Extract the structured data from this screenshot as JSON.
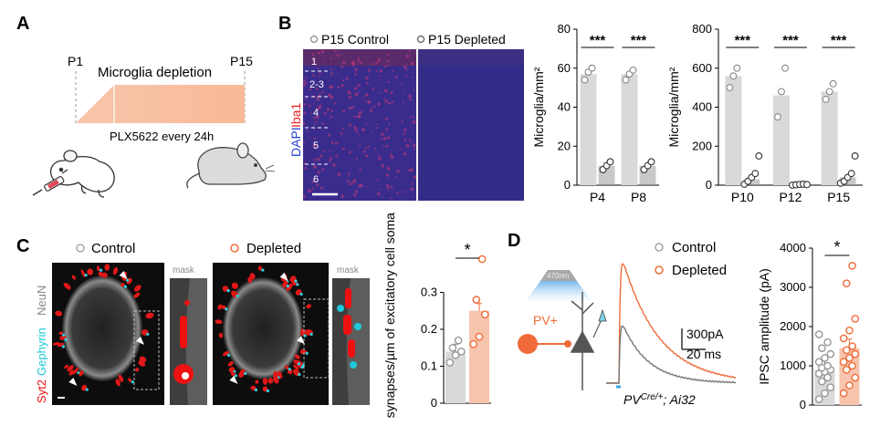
{
  "panels": {
    "a": "A",
    "b": "B",
    "c": "C",
    "d": "D"
  },
  "panel_a": {
    "p1": "P1",
    "p15": "P15",
    "title": "Microglia depletion",
    "drug": "PLX5622 every 24h"
  },
  "panel_b": {
    "legend_control": "P15 Control",
    "legend_depleted": "P15 Depleted",
    "stain_dapi": "DAPI",
    "stain_iba1": "Iba1",
    "layers": [
      "1",
      "2-3",
      "4",
      "5",
      "6"
    ]
  },
  "panel_c": {
    "legend_control": "Control",
    "legend_depleted": "Depleted",
    "mask": "mask",
    "stain_syt2": "Syt2",
    "stain_gephyrin": "Gephyrin",
    "stain_neun": "NeuN"
  },
  "panel_d": {
    "light": "470nm",
    "pv": "PV+",
    "scale_amp": "300pA",
    "scale_time": "20 ms",
    "genotype": "PV",
    "genotype_sup": "Cre/+",
    "genotype_rest": "; Ai32",
    "legend_control": "Control",
    "legend_depleted": "Depleted"
  },
  "colors": {
    "control": "#999999",
    "depleted": "#ef6c3a",
    "bar_control": "#d9d9d9",
    "bar_depleted": "#f7c4ad"
  },
  "chart_data": [
    {
      "id": "b1",
      "type": "bar",
      "ylabel": "Microglia/mm²",
      "categories": [
        "P4",
        "P8"
      ],
      "ylim": [
        0,
        80
      ],
      "yticks": [
        0,
        20,
        40,
        60,
        80
      ],
      "series": [
        {
          "name": "Control",
          "values": [
            57,
            57
          ]
        },
        {
          "name": "Depleted",
          "values": [
            10,
            10
          ]
        }
      ],
      "points": [
        [
          [
            54,
            58,
            60
          ],
          [
            54,
            57,
            59
          ]
        ],
        [
          [
            8,
            10,
            12
          ],
          [
            8,
            10,
            12
          ]
        ]
      ],
      "sig": [
        "***",
        "***"
      ]
    },
    {
      "id": "b2",
      "type": "bar",
      "ylabel": "Microglia/mm²",
      "categories": [
        "P10",
        "P12",
        "P15"
      ],
      "ylim": [
        0,
        800
      ],
      "yticks": [
        0,
        200,
        400,
        600,
        800
      ],
      "series": [
        {
          "name": "Control",
          "values": [
            560,
            460,
            480
          ]
        },
        {
          "name": "Depleted",
          "values": [
            30,
            2,
            40
          ]
        }
      ],
      "points": [
        [
          [
            500,
            560,
            600
          ],
          [
            350,
            480,
            600
          ],
          [
            440,
            480,
            520
          ]
        ],
        [
          [
            5,
            20,
            40,
            60,
            150
          ],
          [
            0,
            2,
            4,
            5,
            3
          ],
          [
            10,
            20,
            40,
            60,
            150
          ]
        ]
      ],
      "sig": [
        "***",
        "***",
        "***"
      ]
    },
    {
      "id": "c",
      "type": "bar",
      "ylabel": "PV+ synapses/µm of excitatory cell soma",
      "categories": [
        "Control",
        "Depleted"
      ],
      "ylim": [
        0,
        0.4
      ],
      "yticks": [
        0,
        0.1,
        0.2,
        0.3
      ],
      "values": [
        0.14,
        0.25
      ],
      "points": [
        [
          0.11,
          0.13,
          0.14,
          0.15,
          0.17
        ],
        [
          0.16,
          0.18,
          0.24,
          0.28,
          0.39
        ]
      ],
      "sig": "*"
    },
    {
      "id": "d",
      "type": "bar",
      "ylabel": "IPSC amplitude (pA)",
      "categories": [
        "Control",
        "Depleted"
      ],
      "ylim": [
        0,
        4000
      ],
      "yticks": [
        0,
        1000,
        2000,
        3000,
        4000
      ],
      "values": [
        900,
        1450
      ],
      "points": [
        [
          150,
          300,
          450,
          600,
          700,
          800,
          850,
          900,
          950,
          1000,
          1100,
          1200,
          1300,
          1450,
          1600,
          1800
        ],
        [
          300,
          500,
          700,
          900,
          1000,
          1100,
          1200,
          1300,
          1400,
          1500,
          1700,
          1900,
          2200,
          3100,
          3550
        ]
      ],
      "sig": "*"
    }
  ]
}
